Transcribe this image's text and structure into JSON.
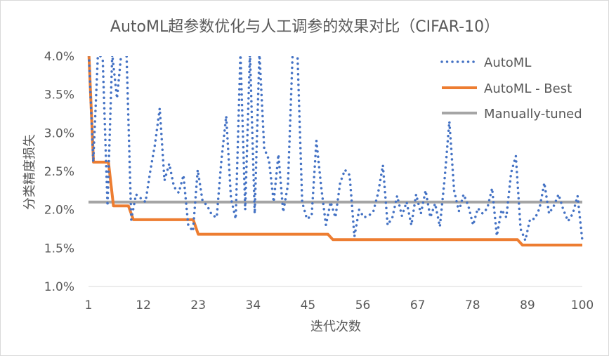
{
  "chart_data": {
    "type": "line",
    "title": "AutoML超参数优化与人工调参的效果对比（CIFAR-10）",
    "xlabel": "迭代次数",
    "ylabel": "分类精度损失",
    "x_range": [
      1,
      100
    ],
    "x_ticks": [
      "1",
      "12",
      "23",
      "34",
      "45",
      "56",
      "67",
      "78",
      "89",
      "100"
    ],
    "ylim": [
      0.01,
      0.04
    ],
    "y_ticks": [
      "1.0%",
      "1.5%",
      "2.0%",
      "2.5%",
      "3.0%",
      "3.5%",
      "4.0%"
    ],
    "legend_position": "top-right",
    "grid": false,
    "series": [
      {
        "name": "AutoML",
        "style": "dotted",
        "color": "#4472C4",
        "values": [
          0.0415,
          0.0262,
          0.0405,
          0.0395,
          0.0205,
          0.0402,
          0.0345,
          0.041,
          0.0405,
          0.0187,
          0.022,
          0.0215,
          0.021,
          0.025,
          0.0285,
          0.0332,
          0.0238,
          0.026,
          0.023,
          0.0222,
          0.0245,
          0.018,
          0.0172,
          0.0252,
          0.0212,
          0.0205,
          0.0193,
          0.019,
          0.0265,
          0.0322,
          0.0215,
          0.0188,
          0.0405,
          0.02,
          0.0405,
          0.0195,
          0.0405,
          0.028,
          0.0265,
          0.021,
          0.0272,
          0.0197,
          0.0232,
          0.0405,
          0.0405,
          0.021,
          0.0188,
          0.0192,
          0.029,
          0.023,
          0.018,
          0.021,
          0.019,
          0.0235,
          0.0252,
          0.0245,
          0.0165,
          0.02,
          0.019,
          0.0192,
          0.0198,
          0.0222,
          0.0258,
          0.018,
          0.019,
          0.0218,
          0.0192,
          0.021,
          0.018,
          0.022,
          0.0195,
          0.0225,
          0.019,
          0.0208,
          0.0178,
          0.024,
          0.0315,
          0.0225,
          0.0198,
          0.022,
          0.0205,
          0.018,
          0.0202,
          0.0195,
          0.0202,
          0.0228,
          0.0166,
          0.02,
          0.019,
          0.0248,
          0.027,
          0.0175,
          0.016,
          0.0188,
          0.0188,
          0.0202,
          0.0235,
          0.0195,
          0.0205,
          0.022,
          0.02,
          0.0185,
          0.0195,
          0.0218,
          0.016
        ]
      },
      {
        "name": "AutoML - Best",
        "style": "solid",
        "color": "#ED7D31",
        "values": [
          0.0415,
          0.0262,
          0.0262,
          0.0262,
          0.0262,
          0.0205,
          0.0205,
          0.0205,
          0.0205,
          0.0187,
          0.0187,
          0.0187,
          0.0187,
          0.0187,
          0.0187,
          0.0187,
          0.0187,
          0.0187,
          0.0187,
          0.0187,
          0.0187,
          0.0187,
          0.0168,
          0.0168,
          0.0168,
          0.0168,
          0.0168,
          0.0168,
          0.0168,
          0.0168,
          0.0168,
          0.0168,
          0.0168,
          0.0168,
          0.0168,
          0.0168,
          0.0168,
          0.0168,
          0.0168,
          0.0168,
          0.0168,
          0.0168,
          0.0168,
          0.0168,
          0.0168,
          0.0168,
          0.0168,
          0.0168,
          0.0168,
          0.0161,
          0.0161,
          0.0161,
          0.0161,
          0.0161,
          0.0161,
          0.0161,
          0.0161,
          0.0161,
          0.0161,
          0.0161,
          0.0161,
          0.0161,
          0.0161,
          0.0161,
          0.0161,
          0.0161,
          0.0161,
          0.0161,
          0.0161,
          0.0161,
          0.0161,
          0.0161,
          0.0161,
          0.0161,
          0.0161,
          0.0161,
          0.0161,
          0.0161,
          0.0161,
          0.0161,
          0.0161,
          0.0161,
          0.0161,
          0.0161,
          0.0161,
          0.0161,
          0.0161,
          0.0154,
          0.0154,
          0.0154,
          0.0154,
          0.0154,
          0.0154,
          0.0154,
          0.0154,
          0.0154,
          0.0154,
          0.0154,
          0.0154,
          0.0154
        ]
      },
      {
        "name": "Manually-tuned",
        "style": "solid",
        "color": "#A5A5A5",
        "values": [
          0.021,
          0.021
        ]
      }
    ]
  }
}
